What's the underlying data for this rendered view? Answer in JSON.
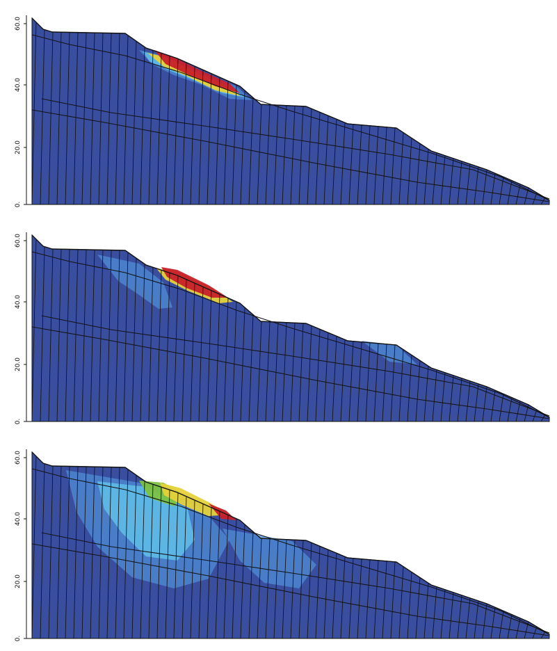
{
  "figure": {
    "panels": [
      {
        "y_tick_labels": [
          "60.0",
          "40.0",
          "20.0",
          "0."
        ]
      },
      {
        "y_tick_labels": [
          "60.0",
          "40.0",
          "20.0",
          "0."
        ]
      },
      {
        "y_tick_labels": [
          "60.0",
          "40.0",
          "20.0",
          "0."
        ]
      }
    ]
  },
  "colors": {
    "background_mesh": "#3a4ea0",
    "light_blue": "#4f8ed6",
    "cyan": "#5fb8e6",
    "green": "#7cc243",
    "yellow": "#e6d23a",
    "orange": "#e98a2f",
    "red": "#c8202a",
    "dark_red": "#7a1010",
    "mesh_lines": "#141414"
  }
}
